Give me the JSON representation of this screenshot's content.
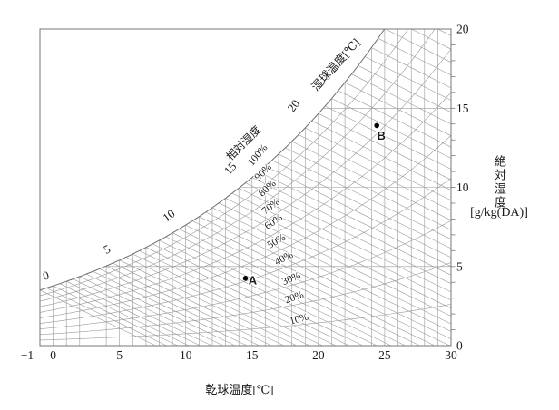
{
  "chart_data": {
    "type": "line",
    "subtype": "psychrometric-chart",
    "x_axis": {
      "label": "乾球温度[℃]",
      "range": [
        -1,
        30
      ],
      "tick_labels": [
        "−1",
        "0",
        "5",
        "10",
        "15",
        "20",
        "25",
        "30"
      ],
      "tick_values": [
        -1,
        0,
        5,
        10,
        15,
        20,
        25,
        30
      ],
      "gridline_step_c": 1
    },
    "y_axis": {
      "side": "right",
      "label": "絶対湿度",
      "unit_label": "[g/kg(DA)]",
      "range": [
        0,
        20
      ],
      "tick_labels": [
        "0",
        "5",
        "10",
        "15",
        "20"
      ],
      "tick_values": [
        0,
        5,
        10,
        15,
        20
      ],
      "major_gridline_step": 5,
      "minor_tick_step": 1
    },
    "wet_bulb_axis": {
      "label": "湿球温度[℃]",
      "tick_labels": [
        "0",
        "5",
        "10",
        "15",
        "20"
      ],
      "tick_values": [
        0,
        5,
        10,
        15,
        20
      ],
      "line_step_c": 0.5
    },
    "relative_humidity": {
      "label": "相対湿度",
      "curve_percents": [
        10,
        20,
        30,
        40,
        50,
        60,
        70,
        80,
        90,
        100
      ],
      "curve_labels": [
        "10%",
        "20%",
        "30%",
        "40%",
        "50%",
        "60%",
        "70%",
        "80%",
        "90%",
        "100%"
      ]
    },
    "saturation_curve_samples": {
      "dry_bulb_c": [
        -1,
        0,
        5,
        10,
        15,
        20,
        24.9
      ],
      "abs_humidity_g_per_kg": [
        3.5,
        3.8,
        5.4,
        7.6,
        10.6,
        14.7,
        20.0
      ]
    },
    "points": [
      {
        "name": "A",
        "dry_bulb_c": 14.5,
        "abs_humidity_g_per_kg": 4.25
      },
      {
        "name": "B",
        "dry_bulb_c": 24.4,
        "abs_humidity_g_per_kg": 13.9
      }
    ],
    "legend": "none",
    "grid": "on"
  },
  "colors": {
    "grid": "#9a9a9a",
    "frame": "#777777",
    "saturation_curve": "#6f6f6f",
    "text": "#1a1a1a",
    "point": "#000000"
  }
}
